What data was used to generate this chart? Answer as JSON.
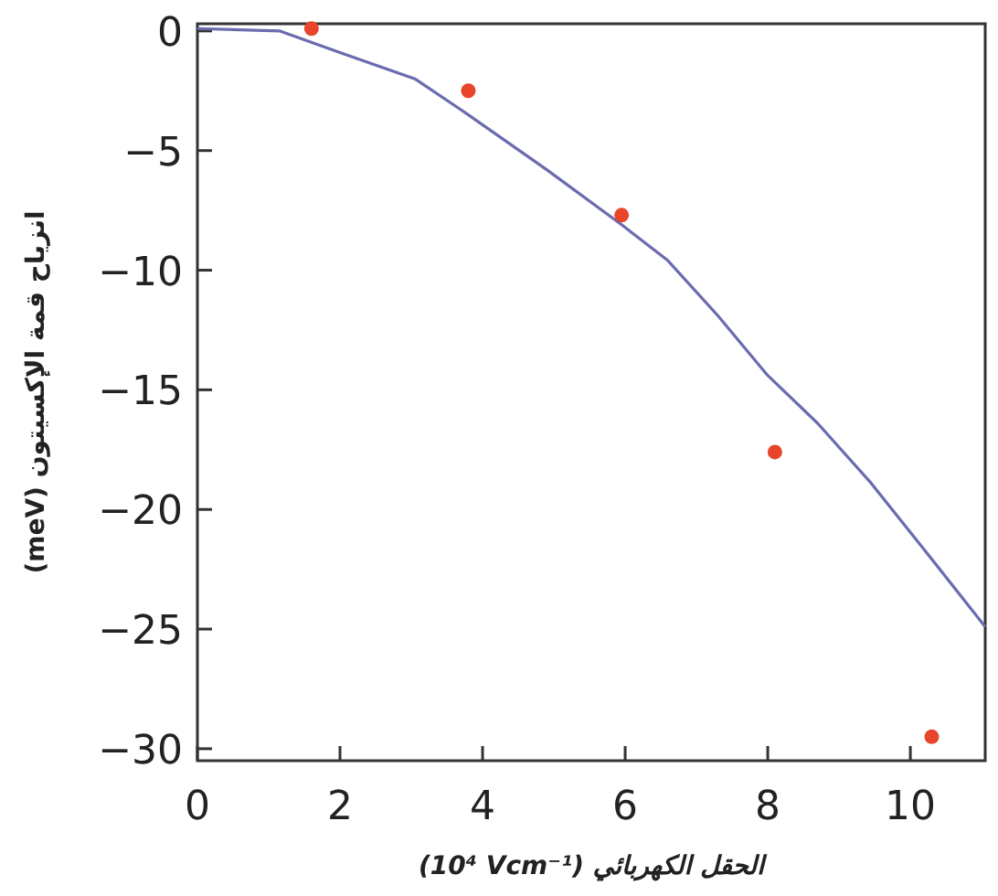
{
  "chart_data": {
    "type": "scatter",
    "xlabel": "الحقل الكهربائي (10⁴ Vcm⁻¹)",
    "ylabel": "انزياح قمة الإكسيتون (meV)",
    "xlim": [
      0,
      11.05
    ],
    "ylim": [
      -30.5,
      0.3
    ],
    "xticks": [
      0,
      2,
      4,
      6,
      8,
      10
    ],
    "yticks": [
      0,
      -5,
      -10,
      -15,
      -20,
      -25,
      -30
    ],
    "grid": false,
    "series": [
      {
        "type": "line",
        "color": "#6b6bb0",
        "x": [
          0,
          1.15,
          2.0,
          3.05,
          3.7,
          4.9,
          5.95,
          6.6,
          7.3,
          8.0,
          8.7,
          9.45,
          10.2,
          11.05
        ],
        "values": [
          0.1,
          0,
          -0.9,
          -2.0,
          -3.3,
          -5.8,
          -8.1,
          -9.6,
          -11.9,
          -14.4,
          -16.4,
          -18.9,
          -21.7,
          -24.9
        ],
        "marker": "none"
      },
      {
        "type": "scatter",
        "color": "#e8452a",
        "x": [
          1.6,
          3.8,
          5.95,
          8.1,
          10.3
        ],
        "values": [
          0.1,
          -2.5,
          -7.7,
          -17.6,
          -29.5
        ],
        "marker": "circle"
      }
    ]
  }
}
